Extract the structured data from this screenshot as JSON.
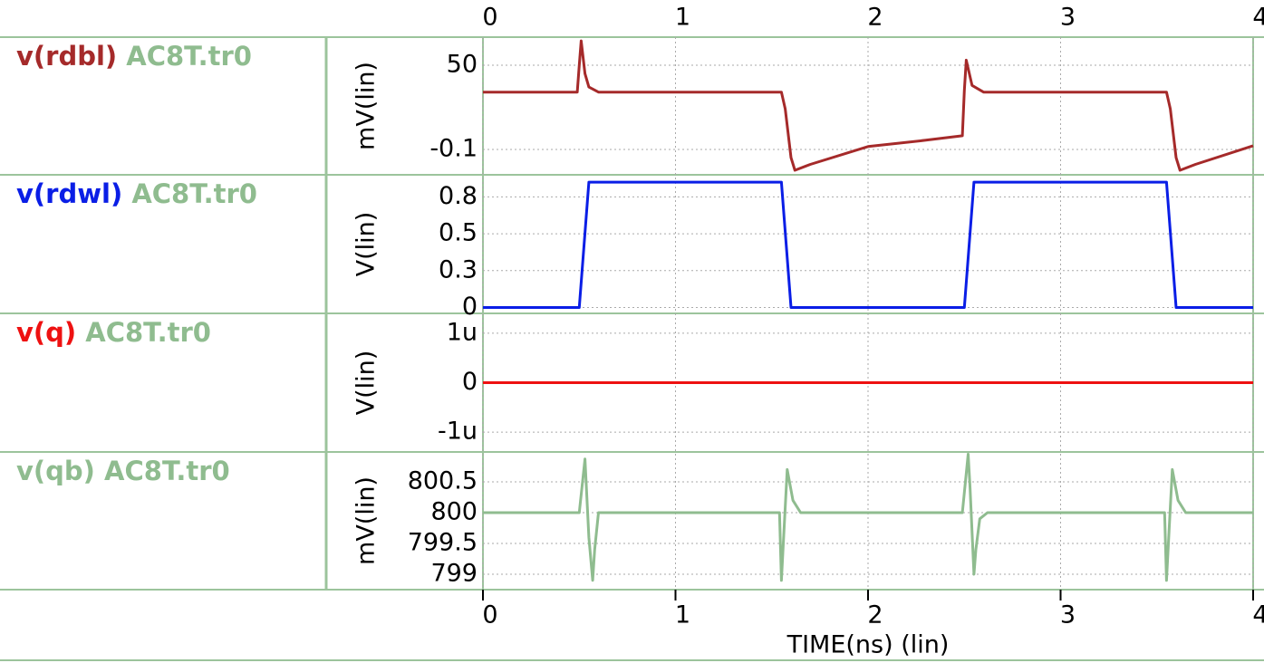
{
  "chart_data": [
    {
      "type": "line",
      "ylabel": "mV(lin)",
      "x": [
        0,
        0.49,
        0.5,
        0.51,
        0.53,
        0.55,
        0.6,
        1.55,
        1.57,
        1.6,
        1.62,
        1.7,
        2.0,
        2.3,
        2.49,
        2.5,
        2.51,
        2.54,
        2.6,
        3.55,
        3.57,
        3.6,
        3.62,
        3.7,
        4.0
      ],
      "series": [
        {
          "name": "v(rdbl)",
          "source": "AC8T.tr0",
          "color": "#a52a2a",
          "values": [
            34,
            34,
            50,
            64.5,
            45,
            37,
            34,
            34,
            24,
            -5,
            -12.5,
            -9,
            1.6,
            5.4,
            8,
            35,
            53,
            38,
            34,
            34,
            24,
            -5,
            -12.5,
            -9,
            2.1
          ]
        }
      ],
      "ylim": [
        -15.2,
        66.7
      ],
      "yticks": [
        50,
        -0.1
      ],
      "grid": true
    },
    {
      "type": "line",
      "ylabel": "V(lin)",
      "x": [
        0,
        0.5,
        0.55,
        1.55,
        1.6,
        2.5,
        2.55,
        3.55,
        3.6,
        4
      ],
      "series": [
        {
          "name": "v(rdwl)",
          "source": "AC8T.tr0",
          "color": "#0a1ee6",
          "values": [
            0,
            0,
            0.85,
            0.85,
            0,
            0,
            0.85,
            0.85,
            0,
            0
          ]
        }
      ],
      "ylim": [
        -0.04,
        0.9
      ],
      "yticks": [
        0,
        {
          "value": 0.25,
          "label": "0.3"
        },
        0.5,
        {
          "value": 0.75,
          "label": "0.8"
        }
      ],
      "grid": true
    },
    {
      "type": "line",
      "ylabel": "V(lin)",
      "x": [
        0,
        4
      ],
      "series": [
        {
          "name": "v(q)",
          "source": "AC8T.tr0",
          "color": "#ee1111",
          "values": [
            0,
            0
          ]
        }
      ],
      "ylim": [
        -1.4e-06,
        1.4e-06
      ],
      "yticks": [
        {
          "value": 1e-06,
          "label": "1u"
        },
        0,
        {
          "value": -1e-06,
          "label": "-1u"
        }
      ],
      "grid": true
    },
    {
      "type": "line",
      "ylabel": "mV(lin)",
      "x": [
        0,
        0.5,
        0.53,
        0.55,
        0.57,
        0.58,
        0.6,
        0.65,
        1.5,
        1.54,
        1.55,
        1.56,
        1.58,
        1.61,
        1.65,
        1.7,
        2.49,
        2.52,
        2.53,
        2.55,
        2.56,
        2.58,
        2.62,
        2.7,
        3.54,
        3.55,
        3.56,
        3.58,
        3.61,
        3.65,
        3.7,
        4
      ],
      "series": [
        {
          "name": "v(qb)",
          "source": "AC8T.tr0",
          "color": "#8fbc8f",
          "values": [
            800,
            800,
            800.87,
            799.6,
            798.9,
            799.4,
            800,
            800,
            800,
            800,
            798.9,
            799.5,
            800.7,
            800.2,
            800,
            800,
            800,
            800.95,
            800.4,
            799.0,
            799.4,
            799.9,
            800,
            800,
            800,
            798.9,
            799.5,
            800.7,
            800.2,
            800,
            800,
            800
          ]
        }
      ],
      "ylim": [
        798.75,
        800.985
      ],
      "yticks": [
        800.5,
        800,
        799.5,
        799
      ],
      "grid": true
    }
  ],
  "x_axis": {
    "label": "TIME(ns) (lin)",
    "xlim": [
      0,
      4
    ],
    "xticks": [
      0,
      1,
      2,
      3,
      4
    ]
  }
}
